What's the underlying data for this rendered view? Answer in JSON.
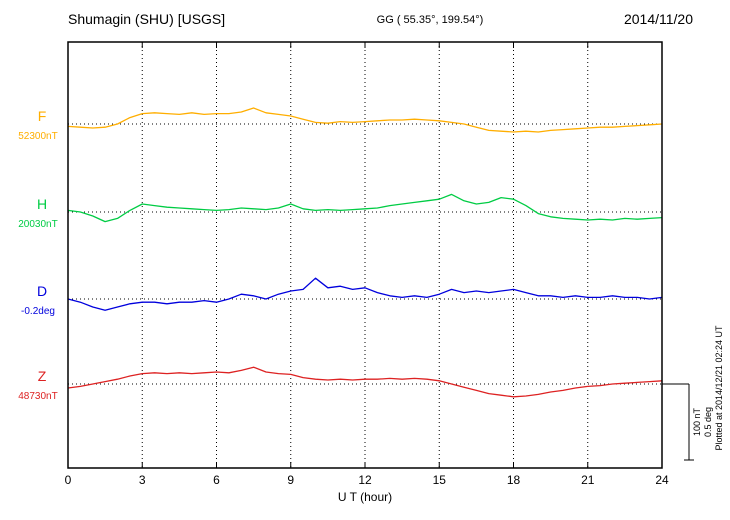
{
  "chart_data": {
    "type": "line",
    "title": "Shumagin (SHU)  [USGS]",
    "subtitle": "GG ( 55.35°, 199.54°)",
    "date": "2014/11/20",
    "xlabel": "U T (hour)",
    "xlim": [
      0,
      24
    ],
    "x_ticks": [
      0,
      3,
      6,
      9,
      12,
      15,
      18,
      21,
      24
    ],
    "x_step_hours": 0.5,
    "grid": "dotted vertical at 3h intervals, dotted horizontal baselines per trace",
    "scale": {
      "nT_per_div": 100,
      "deg_per_div": 0.5
    },
    "scale_label_nT": "100 nT",
    "scale_label_deg": "0.5 deg",
    "annotation": "Plotted at 2014/12/21 02:24 UT",
    "series": [
      {
        "name": "F",
        "unit": "nT",
        "baseline_label": "52300nT",
        "baseline_value": 52300,
        "color": "#ffae00",
        "values": [
          -3,
          -4,
          -5,
          -4,
          0,
          8,
          13,
          14,
          13,
          12,
          14,
          12,
          13,
          13,
          15,
          20,
          14,
          12,
          10,
          6,
          2,
          1,
          3,
          2,
          3,
          4,
          5,
          5,
          6,
          5,
          4,
          2,
          0,
          -4,
          -8,
          -9,
          -10,
          -9,
          -10,
          -8,
          -7,
          -6,
          -5,
          -4,
          -4,
          -3,
          -2,
          -1,
          0
        ]
      },
      {
        "name": "H",
        "unit": "nT",
        "baseline_label": "20030nT",
        "baseline_value": 20030,
        "color": "#00cc44",
        "values": [
          2,
          0,
          -5,
          -12,
          -8,
          2,
          10,
          8,
          6,
          5,
          4,
          3,
          2,
          3,
          5,
          4,
          3,
          5,
          10,
          4,
          2,
          3,
          2,
          3,
          4,
          5,
          8,
          10,
          12,
          14,
          16,
          22,
          14,
          10,
          12,
          18,
          16,
          8,
          -2,
          -6,
          -8,
          -9,
          -10,
          -9,
          -10,
          -8,
          -9,
          -8,
          -7
        ]
      },
      {
        "name": "D",
        "unit": "deg",
        "baseline_label": "-0.2deg",
        "baseline_value": -0.2,
        "color": "#0000dd",
        "values": [
          0.0,
          -0.02,
          -0.05,
          -0.07,
          -0.05,
          -0.03,
          -0.02,
          -0.02,
          -0.03,
          -0.02,
          -0.02,
          -0.01,
          -0.02,
          0.0,
          0.03,
          0.02,
          0.0,
          0.03,
          0.05,
          0.06,
          0.13,
          0.07,
          0.08,
          0.06,
          0.07,
          0.04,
          0.02,
          0.01,
          0.02,
          0.01,
          0.03,
          0.06,
          0.04,
          0.05,
          0.04,
          0.05,
          0.06,
          0.04,
          0.02,
          0.02,
          0.01,
          0.02,
          0.01,
          0.01,
          0.02,
          0.01,
          0.01,
          0.0,
          0.01
        ]
      },
      {
        "name": "Z",
        "unit": "nT",
        "baseline_label": "48730nT",
        "baseline_value": 48730,
        "color": "#dd2222",
        "values": [
          -5,
          -3,
          0,
          3,
          6,
          10,
          13,
          14,
          13,
          14,
          13,
          14,
          15,
          14,
          17,
          21,
          15,
          13,
          12,
          8,
          6,
          5,
          6,
          5,
          6,
          6,
          7,
          6,
          7,
          6,
          4,
          0,
          -4,
          -8,
          -12,
          -14,
          -16,
          -15,
          -13,
          -10,
          -8,
          -5,
          -3,
          -2,
          0,
          1,
          2,
          3,
          4
        ]
      }
    ]
  }
}
